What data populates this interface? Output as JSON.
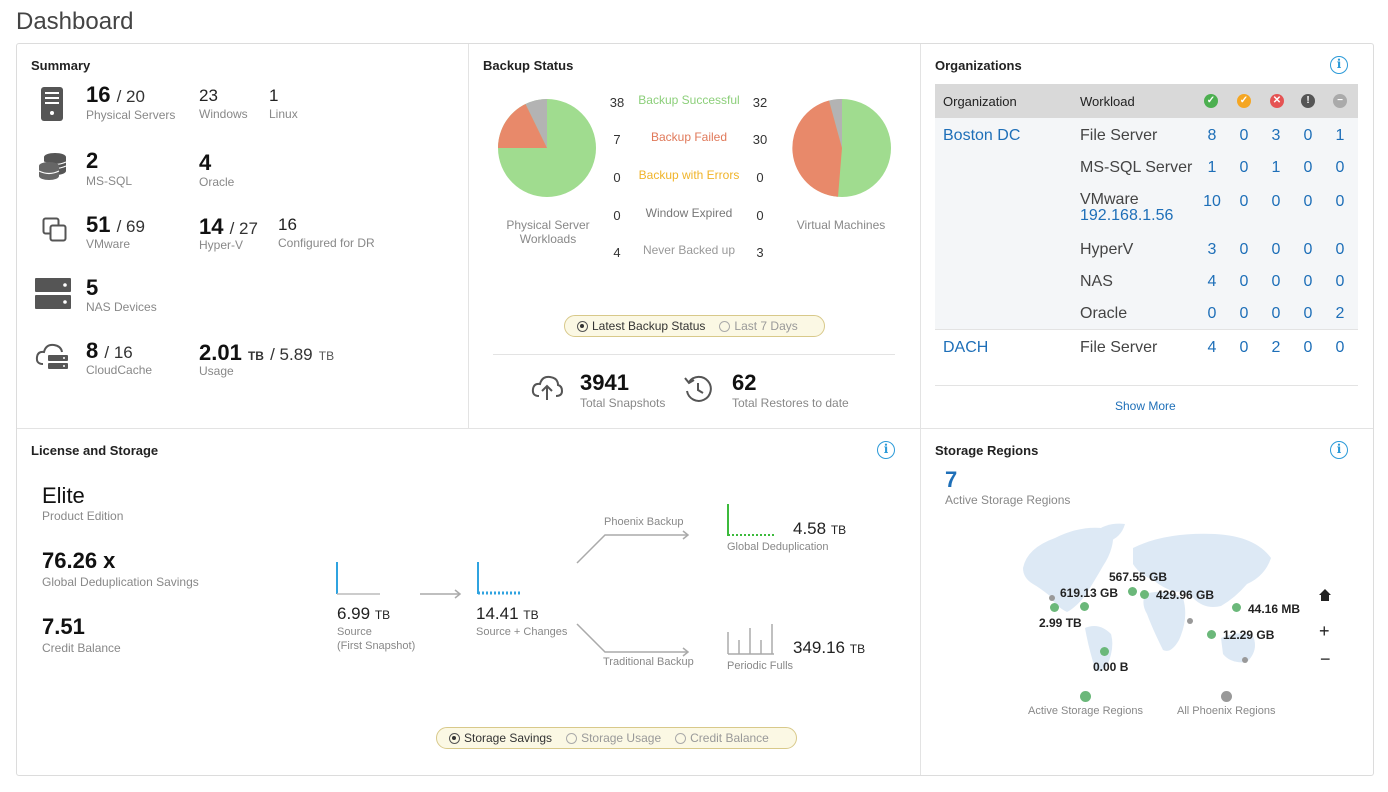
{
  "page": {
    "title": "Dashboard"
  },
  "summary": {
    "title": "Summary",
    "physical": {
      "value": "16",
      "total": "/ 20",
      "label": "Physical Servers",
      "windows": "23",
      "windows_label": "Windows",
      "linux": "1",
      "linux_label": "Linux"
    },
    "db": {
      "mssql": "2",
      "mssql_label": "MS-SQL",
      "oracle": "4",
      "oracle_label": "Oracle"
    },
    "vm": {
      "vmware": "51",
      "vmware_total": "/ 69",
      "vmware_label": "VMware",
      "hyperv": "14",
      "hyperv_total": "/ 27",
      "hyperv_label": "Hyper-V",
      "dr": "16",
      "dr_label": "Configured for DR"
    },
    "nas": {
      "value": "5",
      "label": "NAS Devices"
    },
    "cloudcache": {
      "value": "8",
      "total": "/ 16",
      "label": "CloudCache",
      "usage": "2.01",
      "usage_unit": "TB",
      "usage_total": "/ 5.89",
      "usage_total_unit": "TB",
      "usage_label": "Usage"
    }
  },
  "backup_status": {
    "title": "Backup Status",
    "left_label": "Physical Server Workloads",
    "right_label": "Virtual Machines",
    "rows": [
      {
        "left": "38",
        "label": "Backup Successful",
        "right": "32",
        "color": "#8ccf7a"
      },
      {
        "left": "7",
        "label": "Backup Failed",
        "right": "30",
        "color": "#e0795a"
      },
      {
        "left": "0",
        "label": "Backup with Errors",
        "right": "0",
        "color": "#f0b429"
      },
      {
        "left": "0",
        "label": "Window Expired",
        "right": "0",
        "color": "#777777"
      },
      {
        "left": "4",
        "label": "Never Backed up",
        "right": "3",
        "color": "#999999"
      }
    ],
    "toggle": {
      "on": "Latest Backup Status",
      "off": "Last 7 Days"
    },
    "snapshots": "3941",
    "snapshots_label": "Total Snapshots",
    "restores": "62",
    "restores_label": "Total Restores to date"
  },
  "organizations": {
    "title": "Organizations",
    "headers": {
      "org": "Organization",
      "workload": "Workload"
    },
    "status_icons": [
      {
        "name": "success-status-icon",
        "glyph": "✓",
        "color": "#4caf50"
      },
      {
        "name": "warning-status-icon",
        "glyph": "✓",
        "color": "#f5a623"
      },
      {
        "name": "error-status-icon",
        "glyph": "✕",
        "color": "#e55353"
      },
      {
        "name": "alert-status-icon",
        "glyph": "!",
        "color": "#555555"
      },
      {
        "name": "disabled-status-icon",
        "glyph": "−",
        "color": "#aaaaaa"
      }
    ],
    "rows": [
      {
        "org": "Boston DC",
        "workload": "File Server",
        "sub": "",
        "vals": [
          "8",
          "0",
          "3",
          "0",
          "1"
        ]
      },
      {
        "org": "",
        "workload": "MS-SQL Server",
        "sub": "",
        "vals": [
          "1",
          "0",
          "1",
          "0",
          "0"
        ]
      },
      {
        "org": "",
        "workload": "VMware",
        "sub": "192.168.1.56",
        "vals": [
          "10",
          "0",
          "0",
          "0",
          "0"
        ]
      },
      {
        "org": "",
        "workload": "HyperV",
        "sub": "",
        "vals": [
          "3",
          "0",
          "0",
          "0",
          "0"
        ]
      },
      {
        "org": "",
        "workload": "NAS",
        "sub": "",
        "vals": [
          "4",
          "0",
          "0",
          "0",
          "0"
        ]
      },
      {
        "org": "",
        "workload": "Oracle",
        "sub": "",
        "vals": [
          "0",
          "0",
          "0",
          "0",
          "2"
        ]
      },
      {
        "org": "DACH",
        "workload": "File Server",
        "sub": "",
        "vals": [
          "4",
          "0",
          "2",
          "0",
          "0"
        ]
      }
    ],
    "show_more": "Show More"
  },
  "license": {
    "title": "License and Storage",
    "edition": "Elite",
    "edition_label": "Product Edition",
    "dedup": "76.26 x",
    "dedup_label": "Global Deduplication Savings",
    "credit": "7.51",
    "credit_label": "Credit Balance",
    "source": "6.99",
    "source_unit": "TB",
    "source_label": "Source",
    "source_sub": "(First Snapshot)",
    "changes": "14.41",
    "changes_unit": "TB",
    "changes_label": "Source + Changes",
    "phoenix_label": "Phoenix Backup",
    "traditional_label": "Traditional Backup",
    "global": "4.58",
    "global_unit": "TB",
    "global_label": "Global Deduplication",
    "periodic": "349.16",
    "periodic_unit": "TB",
    "periodic_label": "Periodic Fulls",
    "toggle": {
      "on": "Storage Savings",
      "off1": "Storage Usage",
      "off2": "Credit Balance"
    }
  },
  "regions": {
    "title": "Storage Regions",
    "count": "7",
    "count_label": "Active Storage Regions",
    "labels": [
      "567.55 GB",
      "619.13 GB",
      "429.96 GB",
      "44.16 MB",
      "2.99 TB",
      "12.29 GB",
      "0.00 B"
    ],
    "legend_active": "Active Storage Regions",
    "legend_all": "All Phoenix Regions"
  }
}
